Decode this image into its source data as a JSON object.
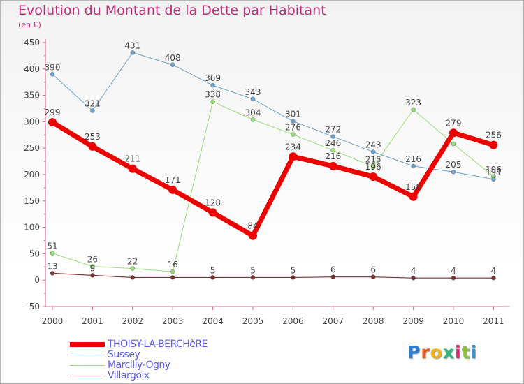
{
  "header": {
    "title": "Evolution du Montant de la Dette par Habitant",
    "unit": "(en €)"
  },
  "chart_data": {
    "type": "line",
    "title": "Evolution du Montant de la Dette par Habitant",
    "ylabel": "(en €)",
    "xlabel": "",
    "x": [
      "2000",
      "2001",
      "2002",
      "2003",
      "2004",
      "2005",
      "2006",
      "2007",
      "2008",
      "2009",
      "2010",
      "2011"
    ],
    "ylim": [
      -50,
      450
    ],
    "yticks": [
      "-50",
      "0",
      "50",
      "100",
      "150",
      "200",
      "250",
      "300",
      "350",
      "400",
      "450"
    ],
    "grid": false,
    "legend_position": "bottom-left",
    "series": [
      {
        "name": "THOISY-LA-BERCHèRE",
        "color": "#ee0000",
        "values": [
          299,
          253,
          211,
          171,
          128,
          84,
          234,
          216,
          196,
          158,
          279,
          256
        ],
        "labels": [
          "299",
          "253",
          "211",
          "171",
          "128",
          "84",
          "234",
          "216",
          "196",
          "158",
          "279",
          "256"
        ]
      },
      {
        "name": "Sussey",
        "color": "#6ea0cc",
        "values": [
          390,
          321,
          431,
          408,
          369,
          343,
          301,
          272,
          243,
          216,
          205,
          191
        ],
        "labels": [
          "390",
          "321",
          "431",
          "408",
          "369",
          "343",
          "301",
          "272",
          "243",
          "216",
          "205",
          "191"
        ]
      },
      {
        "name": "Marcilly-Ogny",
        "color": "#99dd77",
        "values": [
          51,
          26,
          22,
          16,
          338,
          304,
          276,
          246,
          215,
          323,
          258,
          196
        ],
        "labels": [
          "51",
          "26",
          "22",
          "16",
          "338",
          "304",
          "276",
          "246",
          "215",
          "323",
          "",
          "196"
        ]
      },
      {
        "name": "Villargoix",
        "color": "#7a3030",
        "values": [
          13,
          9,
          5,
          5,
          5,
          5,
          5,
          6,
          6,
          4,
          4,
          4
        ],
        "labels": [
          "13",
          "9",
          "",
          "",
          "5",
          "5",
          "5",
          "6",
          "6",
          "4",
          "4",
          "4"
        ]
      }
    ]
  },
  "logo": {
    "text": "Proxiti",
    "colors": [
      "#2a7fd8",
      "#e85a1e",
      "#f2b21a",
      "#2fb37a",
      "#d92b6b",
      "#8fc23c",
      "#2a9ad8"
    ]
  }
}
